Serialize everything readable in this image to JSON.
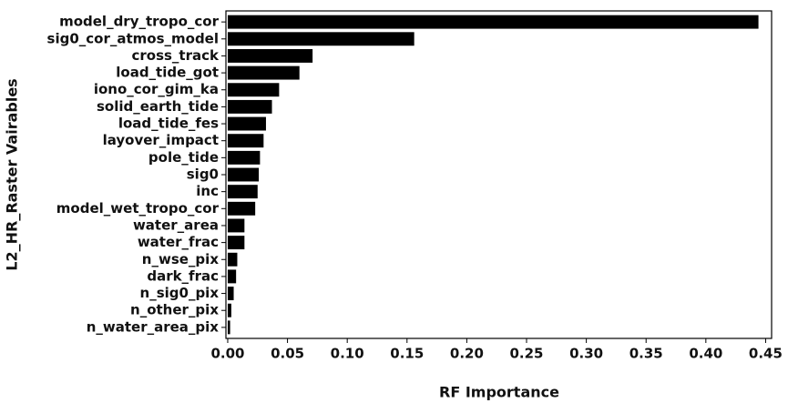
{
  "chart_data": {
    "type": "barh",
    "xlabel": "RF Importance",
    "ylabel": "L2_HR_Raster Vairables",
    "categories": [
      "model_dry_tropo_cor",
      "sig0_cor_atmos_model",
      "cross_track",
      "load_tide_got",
      "iono_cor_gim_ka",
      "solid_earth_tide",
      "load_tide_fes",
      "layover_impact",
      "pole_tide",
      "sig0",
      "inc",
      "model_wet_tropo_cor",
      "water_area",
      "water_frac",
      "n_wse_pix",
      "dark_frac",
      "n_sig0_pix",
      "n_other_pix",
      "n_water_area_pix"
    ],
    "values": [
      0.444,
      0.156,
      0.071,
      0.06,
      0.043,
      0.037,
      0.032,
      0.03,
      0.027,
      0.026,
      0.025,
      0.023,
      0.014,
      0.014,
      0.008,
      0.007,
      0.005,
      0.003,
      0.002
    ],
    "color": "#000000",
    "xlim": [
      -0.0015,
      0.455
    ],
    "xticks": [
      {
        "value": 0,
        "label": "0.00"
      },
      0.05,
      {
        "value": 0.1,
        "label": "0.10"
      },
      0.15,
      {
        "value": 0.2,
        "label": "0.20"
      },
      0.25,
      {
        "value": 0.3,
        "label": "0.30"
      },
      0.35,
      {
        "value": 0.4,
        "label": "0.40"
      },
      0.45
    ]
  }
}
